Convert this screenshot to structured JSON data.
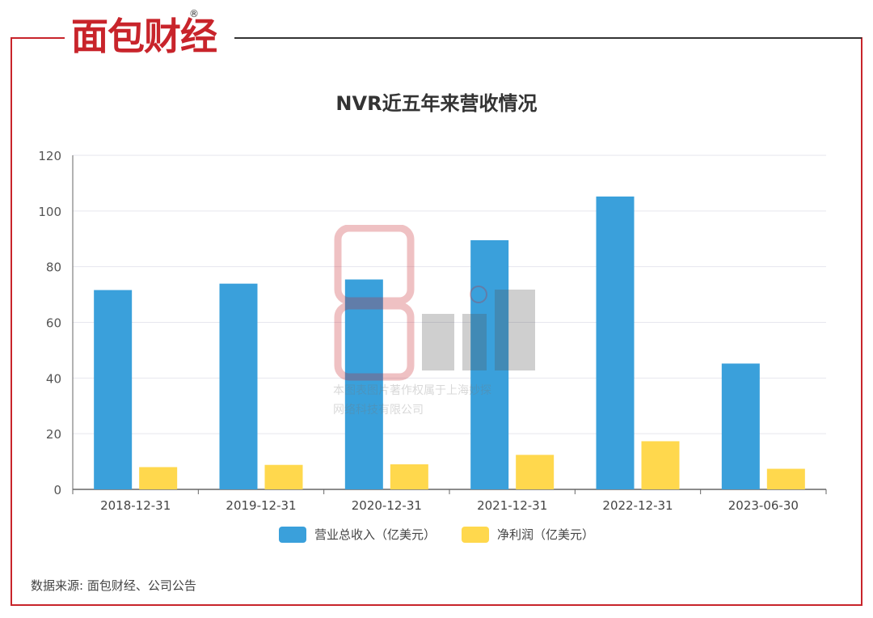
{
  "brand": {
    "name": "面包财经",
    "reg_mark": "®"
  },
  "source_note": "数据来源: 面包财经、公司公告",
  "watermark": {
    "line1": "本图表图片著作权属于上海妙探",
    "line2": "网络科技有限公司"
  },
  "colors": {
    "frame_red": "#c8242b",
    "frame_dark": "#333333",
    "revenue": "#3aa0db",
    "profit": "#ffd84d",
    "grid": "#e6e6ee"
  },
  "chart_data": {
    "type": "bar",
    "title": "NVR近五年来营收情况",
    "categories": [
      "2018-12-31",
      "2019-12-31",
      "2020-12-31",
      "2021-12-31",
      "2022-12-31",
      "2023-06-30"
    ],
    "series": [
      {
        "name": "营业总收入（亿美元）",
        "values": [
          71.6,
          73.9,
          75.4,
          89.5,
          105.2,
          45.2
        ]
      },
      {
        "name": "净利润（亿美元）",
        "values": [
          8.0,
          8.8,
          9.0,
          12.4,
          17.3,
          7.4
        ]
      }
    ],
    "ylim": [
      0,
      120
    ],
    "yticks": [
      0,
      20,
      40,
      60,
      80,
      100,
      120
    ],
    "grid": true,
    "legend": "bottom-center"
  }
}
